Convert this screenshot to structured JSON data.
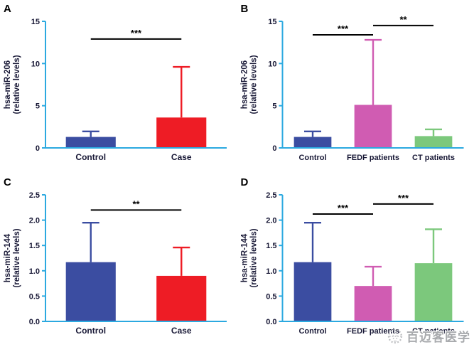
{
  "style": {
    "axis_color": "#2ba9e0",
    "text_color": "#181836",
    "sig_color": "#000000",
    "panel_letter_color": "#000000"
  },
  "watermark": {
    "text": "百迈客医学",
    "logo_icon": "dotted-globe-logo-icon",
    "color": "#a9abae"
  },
  "chart_data": [
    {
      "type": "bar",
      "panel": "A",
      "ylabel_line1": "hsa-miR-206",
      "ylabel_line2": "(relative levels)",
      "ylim": [
        0,
        15
      ],
      "yticks": [
        0,
        5,
        10,
        15
      ],
      "ytick_labels": [
        "0",
        "5",
        "10",
        "15"
      ],
      "categories": [
        "Control",
        "Case"
      ],
      "values": [
        1.3,
        3.6
      ],
      "errors_upper": [
        0.65,
        6.0
      ],
      "bar_colors": [
        "#3b4da1",
        "#ee1c25"
      ],
      "significance": [
        {
          "from": 0,
          "to": 1,
          "y": 12.9,
          "label": "***"
        }
      ]
    },
    {
      "type": "bar",
      "panel": "B",
      "ylabel_line1": "hsa-miR-206",
      "ylabel_line2": "(relative levels)",
      "ylim": [
        0,
        15
      ],
      "yticks": [
        0,
        5,
        10,
        15
      ],
      "ytick_labels": [
        "0",
        "5",
        "10",
        "15"
      ],
      "categories": [
        "Control",
        "FEDF patients",
        "CT patients"
      ],
      "values": [
        1.3,
        5.1,
        1.4
      ],
      "errors_upper": [
        0.65,
        7.7,
        0.8
      ],
      "bar_colors": [
        "#3b4da1",
        "#d05cb2",
        "#7cc87c"
      ],
      "significance": [
        {
          "from": 0,
          "to": 1,
          "y": 13.4,
          "label": "***"
        },
        {
          "from": 1,
          "to": 2,
          "y": 14.5,
          "label": "**"
        }
      ]
    },
    {
      "type": "bar",
      "panel": "C",
      "ylabel_line1": "hsa-miR-144",
      "ylabel_line2": "(relative levels)",
      "ylim": [
        0,
        2.5
      ],
      "yticks": [
        0,
        0.5,
        1.0,
        1.5,
        2.0,
        2.5
      ],
      "ytick_labels": [
        "0.0",
        "0.5",
        "1.0",
        "1.5",
        "2.0",
        "2.5"
      ],
      "categories": [
        "Control",
        "Case"
      ],
      "values": [
        1.17,
        0.9
      ],
      "errors_upper": [
        0.78,
        0.56
      ],
      "bar_colors": [
        "#3b4da1",
        "#ee1c25"
      ],
      "significance": [
        {
          "from": 0,
          "to": 1,
          "y": 2.2,
          "label": "**"
        }
      ]
    },
    {
      "type": "bar",
      "panel": "D",
      "ylabel_line1": "hsa-miR-144",
      "ylabel_line2": "(relative levels)",
      "ylim": [
        0,
        2.5
      ],
      "yticks": [
        0,
        0.5,
        1.0,
        1.5,
        2.0,
        2.5
      ],
      "ytick_labels": [
        "0.0",
        "0.5",
        "1.0",
        "1.5",
        "2.0",
        "2.5"
      ],
      "categories": [
        "Control",
        "FEDF patients",
        "CT patients"
      ],
      "values": [
        1.17,
        0.7,
        1.15
      ],
      "errors_upper": [
        0.78,
        0.38,
        0.67
      ],
      "bar_colors": [
        "#3b4da1",
        "#d05cb2",
        "#7cc87c"
      ],
      "significance": [
        {
          "from": 0,
          "to": 1,
          "y": 2.12,
          "label": "***"
        },
        {
          "from": 1,
          "to": 2,
          "y": 2.32,
          "label": "***"
        }
      ]
    }
  ]
}
